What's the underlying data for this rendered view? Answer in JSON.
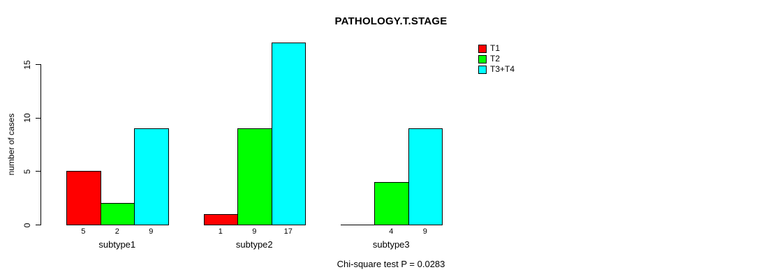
{
  "chart_data": {
    "type": "bar",
    "title": "PATHOLOGY.T.STAGE",
    "ylabel": "number of cases",
    "xlabel": "",
    "note": "Chi-square test P = 0.0283",
    "ylim": [
      0,
      17
    ],
    "yticks": [
      0,
      5,
      10,
      15
    ],
    "grid": false,
    "legend_position": "top-right",
    "categories": [
      "subtype1",
      "subtype2",
      "subtype3"
    ],
    "series": [
      {
        "name": "T1",
        "color": "#ff0000",
        "values": [
          5,
          1,
          0
        ],
        "value_labels": [
          "5",
          "1",
          ""
        ]
      },
      {
        "name": "T2",
        "color": "#00ff00",
        "values": [
          2,
          9,
          4
        ],
        "value_labels": [
          "2",
          "9",
          "4"
        ]
      },
      {
        "name": "T3+T4",
        "color": "#00ffff",
        "values": [
          9,
          17,
          9
        ],
        "value_labels": [
          "9",
          "17",
          "9"
        ]
      }
    ]
  }
}
